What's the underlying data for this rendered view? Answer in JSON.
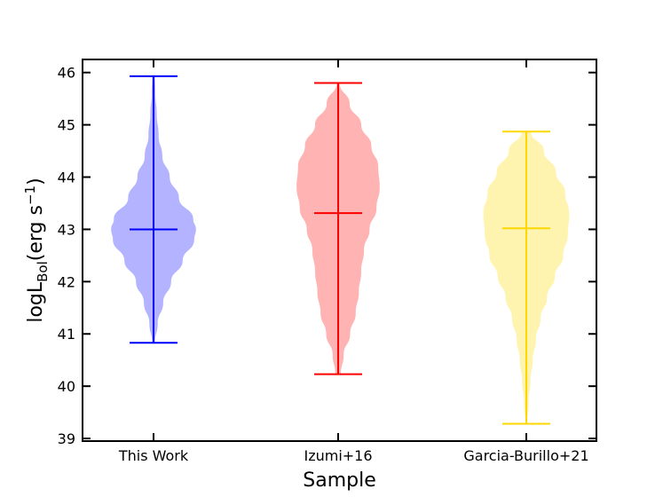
{
  "chart_data": {
    "type": "violin",
    "xlabel": "Sample",
    "ylabel_main": "logL",
    "ylabel_sub": "Bol",
    "ylabel_unit_open": "(erg s",
    "ylabel_unit_sup": "−1",
    "ylabel_unit_close": ")",
    "ylim": [
      38.95,
      46.25
    ],
    "yticks": [
      39,
      40,
      41,
      42,
      43,
      44,
      45,
      46
    ],
    "categories": [
      "This Work",
      "Izumi+16",
      "Garcia-Burillo+21"
    ],
    "series": [
      {
        "category": "This Work",
        "min": 40.83,
        "median": 43.0,
        "max": 45.93,
        "line_color": "#0000ff",
        "fill_color": "#b3b3ff",
        "density_profile": [
          [
            40.83,
            0.03
          ],
          [
            41.2,
            0.09
          ],
          [
            41.6,
            0.21
          ],
          [
            42.0,
            0.38
          ],
          [
            42.4,
            0.63
          ],
          [
            42.8,
            0.88
          ],
          [
            43.0,
            0.92
          ],
          [
            43.2,
            0.86
          ],
          [
            43.6,
            0.55
          ],
          [
            44.0,
            0.35
          ],
          [
            44.4,
            0.19
          ],
          [
            44.8,
            0.11
          ],
          [
            45.2,
            0.07
          ],
          [
            45.6,
            0.04
          ],
          [
            45.93,
            0.03
          ]
        ]
      },
      {
        "category": "Izumi+16",
        "min": 40.23,
        "median": 43.31,
        "max": 45.8,
        "line_color": "#ff0000",
        "fill_color": "#ffb3b3",
        "density_profile": [
          [
            40.23,
            0.06
          ],
          [
            40.6,
            0.12
          ],
          [
            41.0,
            0.26
          ],
          [
            41.4,
            0.38
          ],
          [
            41.8,
            0.45
          ],
          [
            42.2,
            0.5
          ],
          [
            42.6,
            0.56
          ],
          [
            43.0,
            0.68
          ],
          [
            43.4,
            0.83
          ],
          [
            43.8,
            0.9
          ],
          [
            44.2,
            0.87
          ],
          [
            44.6,
            0.72
          ],
          [
            45.0,
            0.5
          ],
          [
            45.4,
            0.25
          ],
          [
            45.8,
            0.03
          ]
        ]
      },
      {
        "category": "Garcia-Burillo+21",
        "min": 39.28,
        "median": 43.02,
        "max": 44.87,
        "line_color": "#ffd700",
        "fill_color": "#fff3b0",
        "density_profile": [
          [
            39.28,
            0.02
          ],
          [
            39.7,
            0.05
          ],
          [
            40.1,
            0.09
          ],
          [
            40.5,
            0.14
          ],
          [
            40.9,
            0.21
          ],
          [
            41.3,
            0.31
          ],
          [
            41.7,
            0.45
          ],
          [
            42.1,
            0.62
          ],
          [
            42.5,
            0.8
          ],
          [
            42.9,
            0.9
          ],
          [
            43.3,
            0.93
          ],
          [
            43.7,
            0.84
          ],
          [
            44.1,
            0.64
          ],
          [
            44.5,
            0.38
          ],
          [
            44.87,
            0.1
          ]
        ]
      }
    ]
  }
}
